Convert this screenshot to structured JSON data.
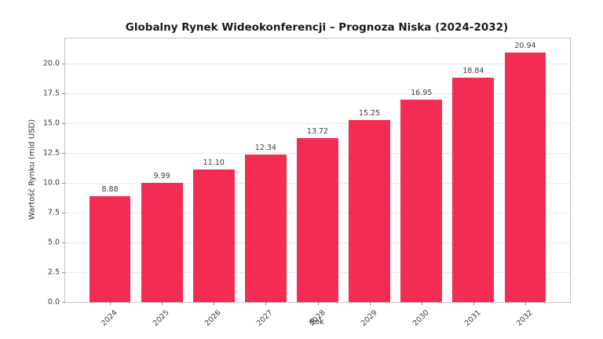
{
  "chart_data": {
    "type": "bar",
    "title": "Globalny Rynek Wideokonferencji – Prognoza Niska (2024-2032)",
    "xlabel": "Rok",
    "ylabel": "Wartość Rynku (mld USD)",
    "categories": [
      "2024",
      "2025",
      "2026",
      "2027",
      "2028",
      "2029",
      "2030",
      "2031",
      "2032"
    ],
    "values": [
      8.88,
      9.99,
      11.1,
      12.34,
      13.72,
      15.25,
      16.95,
      18.84,
      20.94
    ],
    "value_labels": [
      "8.88",
      "9.99",
      "11.10",
      "12.34",
      "13.72",
      "15.25",
      "16.95",
      "18.84",
      "20.94"
    ],
    "yticks": [
      "0.0",
      "2.5",
      "5.0",
      "7.5",
      "10.0",
      "12.5",
      "15.0",
      "17.5",
      "20.0"
    ],
    "ylim": [
      0,
      22.1
    ],
    "grid": true,
    "legend": "none",
    "bar_color": "#f32c53",
    "grid_color": "#e8e8e8",
    "spine_color": "#c4c4c4",
    "text_color": "#3a3a3a"
  }
}
